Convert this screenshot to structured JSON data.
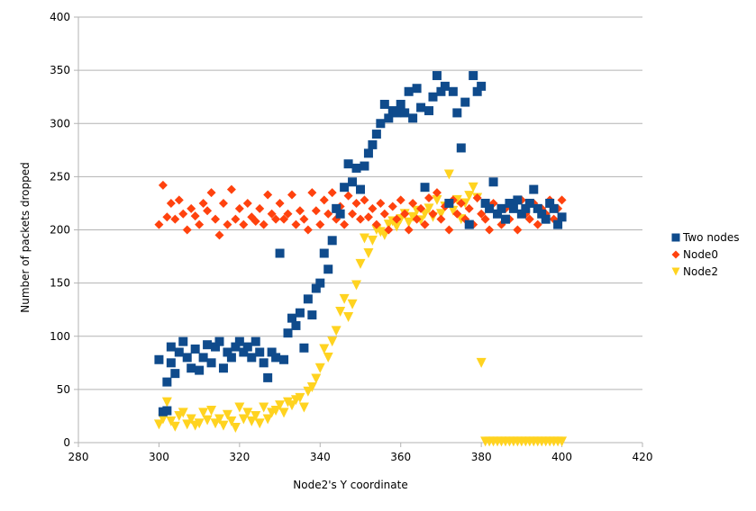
{
  "chart_data": {
    "type": "scatter",
    "title": "",
    "xlabel": "Node2's Y coordinate",
    "ylabel": "Number of packets dropped",
    "xlim": [
      280,
      420
    ],
    "ylim": [
      0,
      400
    ],
    "x_ticks": [
      280,
      300,
      320,
      340,
      360,
      380,
      400,
      420
    ],
    "y_ticks": [
      0,
      50,
      100,
      150,
      200,
      250,
      300,
      350,
      400
    ],
    "x_tick_labels": [
      "280",
      "300",
      "320",
      "340",
      "360",
      "380",
      "400",
      "420"
    ],
    "y_tick_labels": [
      "0",
      "50",
      "100",
      "150",
      "200",
      "250",
      "300",
      "350",
      "400"
    ],
    "grid": "horizontal",
    "legend_position": "right",
    "series": [
      {
        "name": "Two nodes",
        "marker": "square",
        "color": "#0F4B8C",
        "x": [
          300,
          301,
          302,
          302,
          303,
          303,
          304,
          305,
          306,
          307,
          308,
          309,
          310,
          311,
          312,
          313,
          314,
          315,
          316,
          317,
          318,
          319,
          320,
          321,
          322,
          323,
          324,
          325,
          326,
          327,
          328,
          329,
          330,
          331,
          332,
          333,
          334,
          335,
          336,
          337,
          338,
          339,
          340,
          341,
          342,
          343,
          344,
          345,
          346,
          347,
          348,
          349,
          350,
          351,
          352,
          353,
          354,
          355,
          356,
          357,
          358,
          359,
          360,
          361,
          362,
          363,
          364,
          365,
          366,
          367,
          368,
          369,
          370,
          371,
          372,
          373,
          374,
          375,
          376,
          377,
          378,
          379,
          380,
          381,
          382,
          383,
          384,
          385,
          386,
          387,
          388,
          389,
          390,
          391,
          392,
          393,
          394,
          395,
          396,
          397,
          398,
          399,
          400
        ],
        "y": [
          78,
          29,
          57,
          30,
          90,
          75,
          65,
          85,
          95,
          80,
          70,
          88,
          68,
          80,
          92,
          75,
          90,
          95,
          70,
          85,
          80,
          90,
          95,
          85,
          90,
          80,
          95,
          85,
          75,
          61,
          85,
          80,
          178,
          78,
          103,
          117,
          110,
          122,
          89,
          135,
          120,
          145,
          150,
          178,
          163,
          190,
          220,
          215,
          240,
          262,
          245,
          258,
          238,
          260,
          272,
          280,
          290,
          300,
          318,
          305,
          312,
          310,
          318,
          310,
          330,
          305,
          333,
          315,
          240,
          312,
          325,
          345,
          330,
          335,
          225,
          330,
          310,
          277,
          320,
          205,
          345,
          330,
          335,
          225,
          220,
          245,
          215,
          220,
          210,
          225,
          220,
          228,
          215,
          220,
          225,
          238,
          220,
          215,
          210,
          225,
          220,
          205,
          212
        ]
      },
      {
        "name": "Node0",
        "marker": "diamond",
        "color": "#FF420E",
        "x": [
          300,
          301,
          302,
          303,
          304,
          305,
          306,
          307,
          308,
          309,
          310,
          311,
          312,
          313,
          314,
          315,
          316,
          317,
          318,
          319,
          320,
          321,
          322,
          323,
          324,
          325,
          326,
          327,
          328,
          329,
          330,
          331,
          332,
          333,
          334,
          335,
          336,
          337,
          338,
          339,
          340,
          341,
          342,
          343,
          344,
          345,
          346,
          347,
          348,
          349,
          350,
          351,
          352,
          353,
          354,
          355,
          356,
          357,
          358,
          359,
          360,
          361,
          362,
          363,
          364,
          365,
          366,
          367,
          368,
          369,
          370,
          371,
          372,
          373,
          374,
          375,
          376,
          377,
          378,
          379,
          380,
          381,
          382,
          383,
          384,
          385,
          386,
          387,
          388,
          389,
          390,
          391,
          392,
          393,
          394,
          395,
          396,
          397,
          398,
          399,
          400
        ],
        "y": [
          205,
          242,
          212,
          225,
          210,
          228,
          215,
          200,
          220,
          213,
          205,
          225,
          218,
          235,
          210,
          195,
          225,
          205,
          238,
          210,
          220,
          205,
          225,
          212,
          208,
          220,
          205,
          233,
          215,
          210,
          225,
          210,
          215,
          233,
          205,
          218,
          210,
          200,
          235,
          218,
          205,
          228,
          215,
          235,
          210,
          222,
          205,
          232,
          215,
          225,
          210,
          228,
          212,
          220,
          205,
          225,
          215,
          200,
          222,
          210,
          228,
          215,
          200,
          225,
          210,
          220,
          205,
          230,
          215,
          235,
          210,
          222,
          200,
          228,
          215,
          225,
          210,
          220,
          205,
          230,
          215,
          210,
          200,
          225,
          215,
          205,
          220,
          210,
          225,
          200,
          228,
          215,
          210,
          225,
          205,
          220,
          215,
          228,
          210,
          220,
          228
        ]
      },
      {
        "name": "Node2",
        "marker": "triangle-down",
        "color": "#FFD320",
        "x": [
          300,
          301,
          302,
          303,
          304,
          305,
          306,
          307,
          308,
          309,
          310,
          311,
          312,
          313,
          314,
          315,
          316,
          317,
          318,
          319,
          320,
          321,
          322,
          323,
          324,
          325,
          326,
          327,
          328,
          329,
          330,
          331,
          332,
          333,
          334,
          335,
          336,
          337,
          338,
          339,
          340,
          341,
          342,
          343,
          344,
          345,
          346,
          347,
          348,
          349,
          350,
          351,
          352,
          353,
          354,
          355,
          356,
          357,
          358,
          359,
          360,
          361,
          362,
          363,
          364,
          365,
          366,
          367,
          368,
          369,
          370,
          371,
          372,
          373,
          374,
          375,
          376,
          377,
          378,
          379,
          380,
          381,
          382,
          383,
          384,
          385,
          386,
          387,
          388,
          389,
          390,
          391,
          392,
          393,
          394,
          395,
          396,
          397,
          398,
          399,
          400
        ],
        "y": [
          17,
          22,
          38,
          20,
          15,
          25,
          28,
          17,
          22,
          16,
          18,
          28,
          21,
          30,
          18,
          22,
          16,
          26,
          20,
          14,
          33,
          22,
          28,
          20,
          25,
          18,
          33,
          22,
          28,
          30,
          35,
          28,
          38,
          35,
          40,
          42,
          33,
          48,
          52,
          60,
          70,
          88,
          80,
          95,
          105,
          123,
          135,
          118,
          130,
          148,
          168,
          192,
          178,
          190,
          200,
          198,
          195,
          205,
          208,
          203,
          210,
          215,
          207,
          212,
          218,
          209,
          215,
          220,
          212,
          228,
          215,
          222,
          252,
          218,
          228,
          210,
          225,
          232,
          240,
          230,
          75,
          1,
          1,
          1,
          1,
          1,
          1,
          1,
          1,
          1,
          1,
          1,
          1,
          1,
          1,
          1,
          1,
          1,
          1,
          1,
          1
        ]
      }
    ]
  }
}
